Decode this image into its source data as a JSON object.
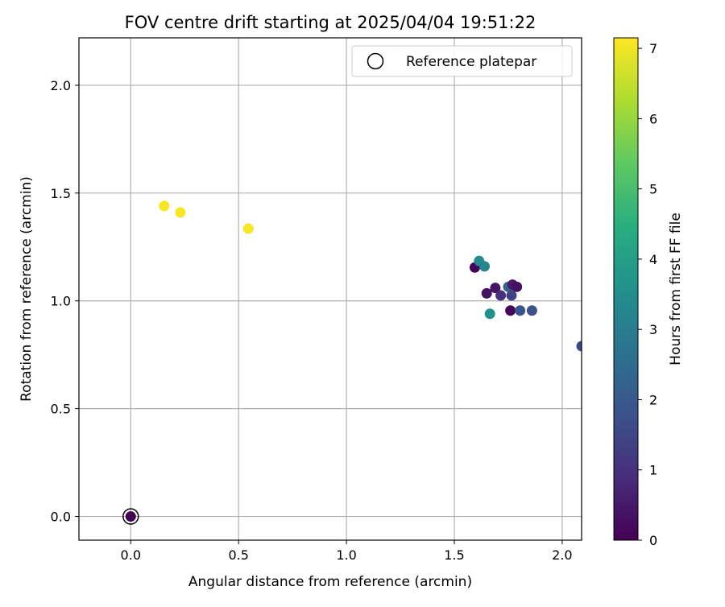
{
  "chart_data": {
    "type": "scatter",
    "title": "FOV centre drift starting at 2025/04/04 19:51:22",
    "xlabel": "Angular distance from reference (arcmin)",
    "ylabel": "Rotation from reference (arcmin)",
    "xlim": [
      -0.24,
      2.09
    ],
    "ylim": [
      -0.11,
      2.22
    ],
    "xticks": [
      0.0,
      0.5,
      1.0,
      1.5,
      2.0
    ],
    "xtick_labels": [
      "0.0",
      "0.5",
      "1.0",
      "1.5",
      "2.0"
    ],
    "yticks": [
      0.0,
      0.5,
      1.0,
      1.5,
      2.0
    ],
    "ytick_labels": [
      "0.0",
      "0.5",
      "1.0",
      "1.5",
      "2.0"
    ],
    "grid": true,
    "legend": {
      "position": "top-right",
      "entries": [
        "Reference platepar"
      ]
    },
    "colorbar": {
      "label": "Hours from first FF file",
      "min": 0,
      "max": 7.15,
      "ticks": [
        0,
        1,
        2,
        3,
        4,
        5,
        6,
        7
      ],
      "tick_labels": [
        "0",
        "1",
        "2",
        "3",
        "4",
        "5",
        "6",
        "7"
      ],
      "colormap": "viridis"
    },
    "reference": {
      "x": 0.0,
      "y": 0.0
    },
    "points": [
      {
        "x": 0.0,
        "y": 0.0,
        "hours": 0.0
      },
      {
        "x": 0.155,
        "y": 1.44,
        "hours": 7.1
      },
      {
        "x": 0.23,
        "y": 1.41,
        "hours": 7.1
      },
      {
        "x": 0.545,
        "y": 1.335,
        "hours": 7.1
      },
      {
        "x": 1.595,
        "y": 1.155,
        "hours": 0.1
      },
      {
        "x": 1.615,
        "y": 1.185,
        "hours": 3.4
      },
      {
        "x": 1.64,
        "y": 1.16,
        "hours": 3.3
      },
      {
        "x": 1.65,
        "y": 1.035,
        "hours": 0.3
      },
      {
        "x": 1.665,
        "y": 0.94,
        "hours": 3.6
      },
      {
        "x": 1.69,
        "y": 1.06,
        "hours": 0.4
      },
      {
        "x": 1.715,
        "y": 1.025,
        "hours": 1.0
      },
      {
        "x": 1.75,
        "y": 1.065,
        "hours": 2.2
      },
      {
        "x": 1.765,
        "y": 1.025,
        "hours": 1.4
      },
      {
        "x": 1.77,
        "y": 1.075,
        "hours": 0.5
      },
      {
        "x": 1.79,
        "y": 1.065,
        "hours": 0.3
      },
      {
        "x": 1.76,
        "y": 0.955,
        "hours": 0.1
      },
      {
        "x": 1.805,
        "y": 0.955,
        "hours": 1.9
      },
      {
        "x": 1.86,
        "y": 0.955,
        "hours": 1.8
      },
      {
        "x": 2.09,
        "y": 0.79,
        "hours": 1.5
      }
    ]
  }
}
